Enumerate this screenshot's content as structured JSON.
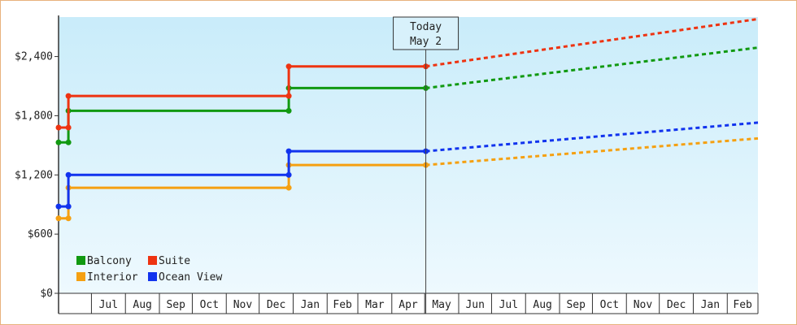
{
  "chart_data": {
    "type": "line",
    "title": "",
    "xlabel": "",
    "ylabel": "",
    "ylim": [
      0,
      2800
    ],
    "y_ticks": [
      {
        "value": 0,
        "label": "$0"
      },
      {
        "value": 600,
        "label": "$600"
      },
      {
        "value": 1200,
        "label": "$1,200"
      },
      {
        "value": 1800,
        "label": "$1,800"
      },
      {
        "value": 2400,
        "label": "$2,400"
      }
    ],
    "x_start": "2021-06-01",
    "x_end": "2023-03-01",
    "month_labels": [
      "Jul",
      "Aug",
      "Sep",
      "Oct",
      "Nov",
      "Dec",
      "Jan",
      "Feb",
      "Mar",
      "Apr",
      "May",
      "Jun",
      "Jul",
      "Aug",
      "Sep",
      "Oct",
      "Nov",
      "Dec",
      "Jan",
      "Feb"
    ],
    "today": {
      "date": "2022-05-02",
      "label_line1": "Today",
      "label_line2": "May 2"
    },
    "legend_position": "bottom-left",
    "grid": false,
    "background_gradient": [
      "#c9ecfa",
      "#eef9fe"
    ],
    "series": [
      {
        "name": "Balcony",
        "color": "#119911",
        "steps": [
          {
            "date": "2021-06-01",
            "value": 1530
          },
          {
            "date": "2021-06-10",
            "value": 1850
          },
          {
            "date": "2021-12-28",
            "value": 2080
          }
        ],
        "forecast": [
          {
            "date": "2022-05-02",
            "value": 2080
          },
          {
            "date": "2023-03-01",
            "value": 2490
          }
        ]
      },
      {
        "name": "Suite",
        "color": "#ee3311",
        "steps": [
          {
            "date": "2021-06-01",
            "value": 1680
          },
          {
            "date": "2021-06-10",
            "value": 2000
          },
          {
            "date": "2021-12-28",
            "value": 2300
          }
        ],
        "forecast": [
          {
            "date": "2022-05-02",
            "value": 2300
          },
          {
            "date": "2023-03-01",
            "value": 2780
          }
        ]
      },
      {
        "name": "Interior",
        "color": "#f5a011",
        "steps": [
          {
            "date": "2021-06-01",
            "value": 760
          },
          {
            "date": "2021-06-10",
            "value": 1070
          },
          {
            "date": "2021-12-28",
            "value": 1300
          }
        ],
        "forecast": [
          {
            "date": "2022-05-02",
            "value": 1300
          },
          {
            "date": "2023-03-01",
            "value": 1570
          }
        ]
      },
      {
        "name": "Ocean View",
        "color": "#1133ee",
        "steps": [
          {
            "date": "2021-06-01",
            "value": 880
          },
          {
            "date": "2021-06-10",
            "value": 1200
          },
          {
            "date": "2021-12-28",
            "value": 1440
          }
        ],
        "forecast": [
          {
            "date": "2022-05-02",
            "value": 1440
          },
          {
            "date": "2023-03-01",
            "value": 1730
          }
        ]
      }
    ]
  }
}
